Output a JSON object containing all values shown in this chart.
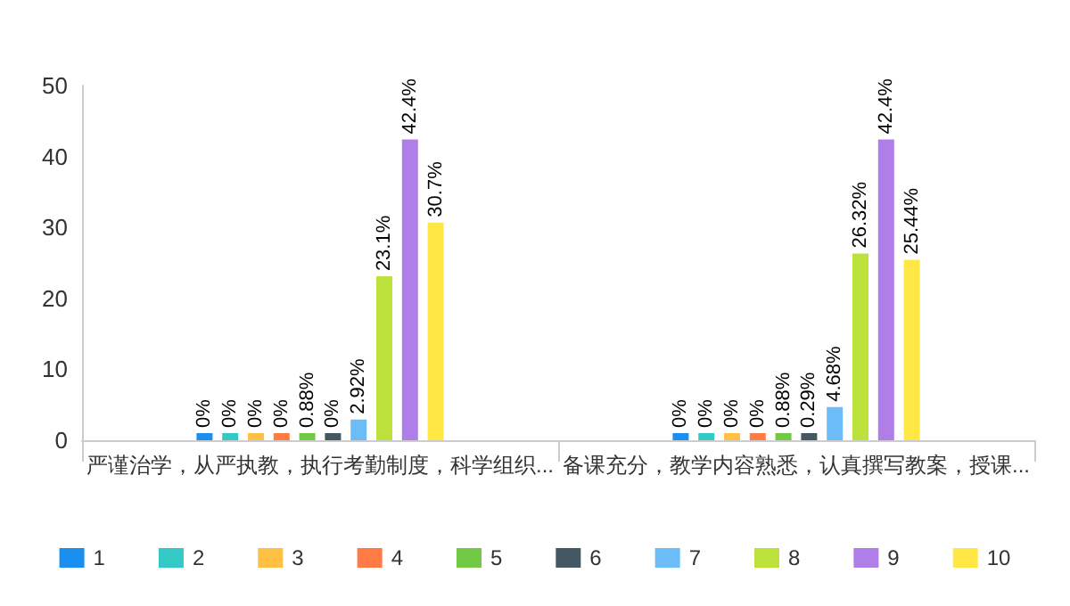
{
  "chart_data": {
    "type": "bar",
    "categories": [
      "严谨治学，从严执教，执行考勤制度，科学组织...",
      "备课充分，教学内容熟悉，认真撰写教案，授课..."
    ],
    "series": [
      {
        "name": "1",
        "color": "#1a8ff0",
        "values": [
          0,
          0
        ],
        "value_labels": [
          "0%",
          "0%"
        ]
      },
      {
        "name": "2",
        "color": "#33c9c4",
        "values": [
          0,
          0
        ],
        "value_labels": [
          "0%",
          "0%"
        ]
      },
      {
        "name": "3",
        "color": "#ffc044",
        "values": [
          0,
          0
        ],
        "value_labels": [
          "0%",
          "0%"
        ]
      },
      {
        "name": "4",
        "color": "#ff7a45",
        "values": [
          0,
          0
        ],
        "value_labels": [
          "0%",
          "0%"
        ]
      },
      {
        "name": "5",
        "color": "#71c946",
        "values": [
          0.88,
          0.88
        ],
        "value_labels": [
          "0.88%",
          "0.88%"
        ]
      },
      {
        "name": "6",
        "color": "#435863",
        "values": [
          0,
          0.29
        ],
        "value_labels": [
          "0%",
          "0.29%"
        ]
      },
      {
        "name": "7",
        "color": "#6cbcf7",
        "values": [
          2.92,
          4.68
        ],
        "value_labels": [
          "2.92%",
          "4.68%"
        ]
      },
      {
        "name": "8",
        "color": "#bce13a",
        "values": [
          23.1,
          26.32
        ],
        "value_labels": [
          "23.1%",
          "26.32%"
        ]
      },
      {
        "name": "9",
        "color": "#b07ee8",
        "values": [
          42.4,
          42.4
        ],
        "value_labels": [
          "42.4%",
          "42.4%"
        ]
      },
      {
        "name": "10",
        "color": "#ffe845",
        "values": [
          30.7,
          25.44
        ],
        "value_labels": [
          "30.7%",
          "25.44%"
        ]
      }
    ],
    "ylim": [
      0,
      50
    ],
    "yticks": [
      0,
      10,
      20,
      30,
      40,
      50
    ],
    "grid": false,
    "legend": "bottom"
  }
}
